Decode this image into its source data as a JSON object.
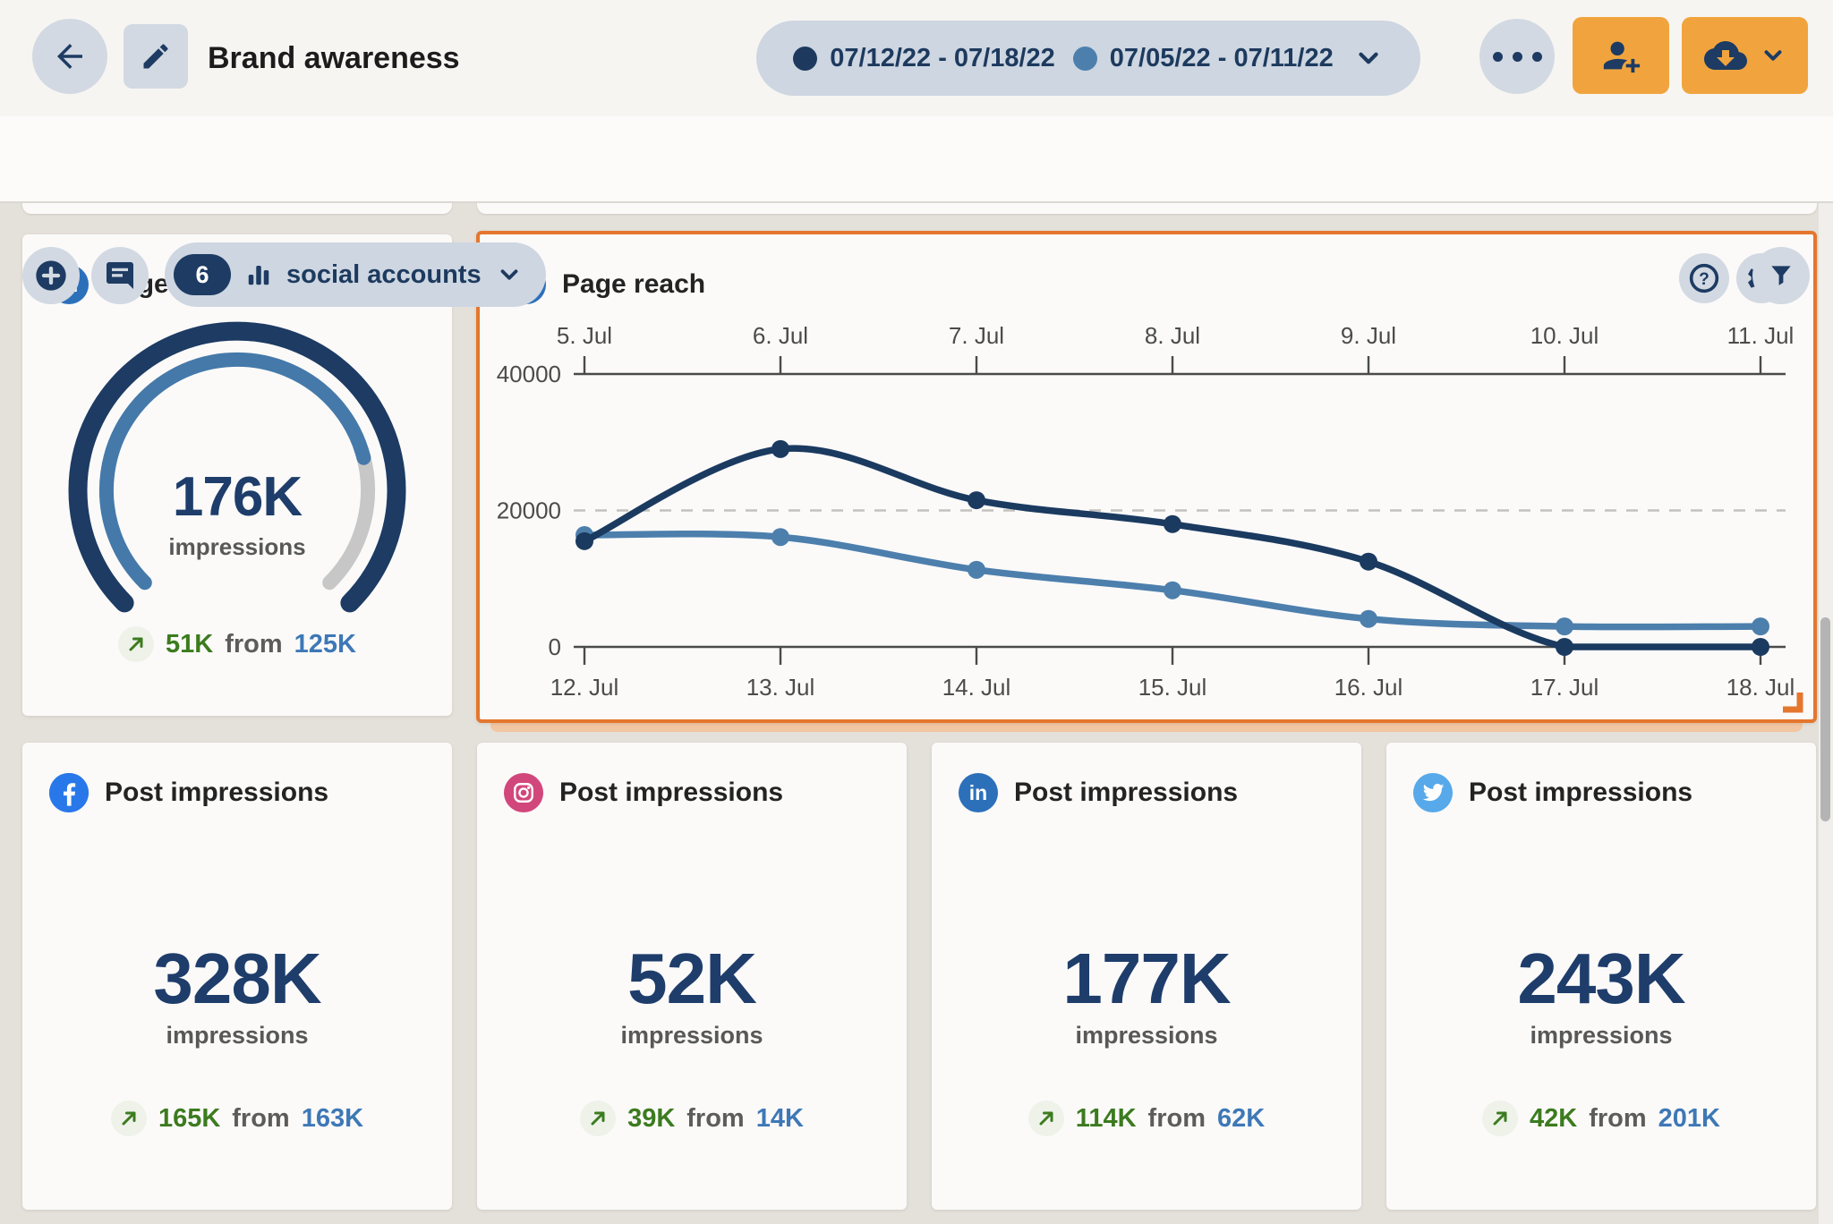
{
  "header": {
    "title": "Brand awareness",
    "date_range": {
      "primary_label": "07/12/22 - 07/18/22",
      "comparison_label": "07/05/22 - 07/11/22"
    }
  },
  "toolbar": {
    "accounts_badge": "6",
    "accounts_label": "social accounts"
  },
  "metric_cards": {
    "page_impressions": {
      "platform_icon": "linkedin-icon",
      "platform_glyph": "in",
      "title": "Page impressions",
      "value": "176K",
      "unit": "impressions",
      "change": "51K",
      "from_label": "from",
      "previous": "125K",
      "gauge_percent": 78
    },
    "page_reach": {
      "platform_icon": "linkedin-icon",
      "platform_glyph": "in",
      "title": "Page reach"
    },
    "post_impressions": [
      {
        "platform_icon": "facebook-icon",
        "title": "Post impressions",
        "value": "328K",
        "unit": "impressions",
        "change": "165K",
        "from_label": "from",
        "previous": "163K"
      },
      {
        "platform_icon": "instagram-icon",
        "title": "Post impressions",
        "value": "52K",
        "unit": "impressions",
        "change": "39K",
        "from_label": "from",
        "previous": "14K"
      },
      {
        "platform_icon": "linkedin-icon",
        "platform_glyph": "in",
        "title": "Post impressions",
        "value": "177K",
        "unit": "impressions",
        "change": "114K",
        "from_label": "from",
        "previous": "62K"
      },
      {
        "platform_icon": "twitter-icon",
        "title": "Post impressions",
        "value": "243K",
        "unit": "impressions",
        "change": "42K",
        "from_label": "from",
        "previous": "201K"
      }
    ]
  },
  "chart_data": {
    "type": "line",
    "title": "Page reach",
    "x_axis_top": [
      "5. Jul",
      "6. Jul",
      "7. Jul",
      "8. Jul",
      "9. Jul",
      "10. Jul",
      "11. Jul"
    ],
    "x_axis_bottom": [
      "12. Jul",
      "13. Jul",
      "14. Jul",
      "15. Jul",
      "16. Jul",
      "17. Jul",
      "18. Jul"
    ],
    "ylim": [
      0,
      40000
    ],
    "ytick_labels": [
      "0",
      "20000",
      "40000"
    ],
    "grid": "solid axis at 0 and 40000, dashed gridline at 20000",
    "legend_position": "none (periods shown in header date pill)",
    "series": [
      {
        "name": "07/12/22 - 07/18/22",
        "color": "#1b3a60",
        "axis": "bottom",
        "values": [
          15500,
          29000,
          21500,
          18000,
          12500,
          0,
          0
        ]
      },
      {
        "name": "07/05/22 - 07/11/22",
        "color": "#4d7fad",
        "axis": "top",
        "values": [
          16400,
          16100,
          11300,
          8300,
          4100,
          3000,
          3000
        ]
      }
    ]
  },
  "colors": {
    "navy": "#1d3b63",
    "series_primary": "#1b3a60",
    "series_comparison": "#4d7fad",
    "accent_orange_button": "#f1a43e",
    "selection_border_orange": "#e5762e",
    "positive_green": "#3c7b1f",
    "previous_value_blue": "#3e78b6",
    "gauge_fill_blue": "#4579a9",
    "gauge_rest_gray": "#c7c7c7",
    "linkedin_blue": "#2c70ba",
    "facebook_blue": "#2878ea",
    "instagram_pink": "#d2477b",
    "twitter_blue": "#57a9ea"
  }
}
